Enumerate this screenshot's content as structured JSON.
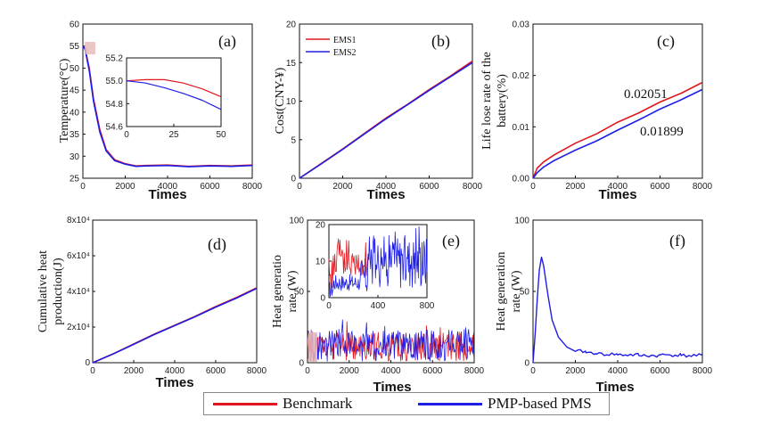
{
  "colors": {
    "benchmark": "#e0171e",
    "pmp": "#1e1ee6",
    "axis": "#111111"
  },
  "legend": {
    "benchmark_label": "Benchmark",
    "pmp_label": "PMP-based PMS"
  },
  "chart_data": [
    {
      "id": "a",
      "panel_label": "(a)",
      "type": "line",
      "xlabel": "Times",
      "ylabel": "Temperature(°C)",
      "xlim": [
        0,
        8000
      ],
      "ylim": [
        25,
        60
      ],
      "xticks": [
        "0",
        "2000",
        "4000",
        "6000",
        "8000"
      ],
      "yticks": [
        "25",
        "30",
        "35",
        "40",
        "45",
        "50",
        "55",
        "60"
      ],
      "series": [
        {
          "name": "Benchmark",
          "x": [
            0,
            100,
            300,
            500,
            800,
            1100,
            1500,
            2000,
            2500,
            3000,
            4000,
            5000,
            6000,
            7000,
            8000
          ],
          "values": [
            55,
            54.5,
            50,
            43,
            36,
            31.5,
            29.2,
            28.3,
            27.8,
            27.9,
            28.0,
            27.7,
            27.9,
            27.8,
            28.0
          ]
        },
        {
          "name": "PMP-based PMS",
          "x": [
            0,
            100,
            300,
            500,
            800,
            1100,
            1500,
            2000,
            2500,
            3000,
            4000,
            5000,
            6000,
            7000,
            8000
          ],
          "values": [
            55,
            54.3,
            49.5,
            42.5,
            35.5,
            31.2,
            29.0,
            28.2,
            27.7,
            27.8,
            27.9,
            27.6,
            27.8,
            27.7,
            27.9
          ]
        }
      ],
      "inset": {
        "xlim": [
          0,
          50
        ],
        "ylim": [
          54.6,
          55.2
        ],
        "xticks": [
          "0",
          "25",
          "50"
        ],
        "yticks": [
          "54.6",
          "54.8",
          "55.0",
          "55.2"
        ],
        "series": [
          {
            "name": "Benchmark",
            "x": [
              0,
              10,
              20,
              30,
              40,
              50
            ],
            "values": [
              55.0,
              55.01,
              55.01,
              54.98,
              54.93,
              54.86
            ]
          },
          {
            "name": "PMP-based PMS",
            "x": [
              0,
              10,
              20,
              30,
              40,
              50
            ],
            "values": [
              55.0,
              54.98,
              54.94,
              54.89,
              54.83,
              54.75
            ]
          }
        ]
      }
    },
    {
      "id": "b",
      "panel_label": "(b)",
      "type": "line",
      "xlabel": "Times",
      "ylabel": "Cost(CNY-¥)",
      "xlim": [
        0,
        8000
      ],
      "ylim": [
        0,
        20
      ],
      "xticks": [
        "0",
        "2000",
        "4000",
        "6000",
        "8000"
      ],
      "yticks": [
        "0",
        "5",
        "10",
        "15",
        "20"
      ],
      "legend_entries": [
        "EMS1",
        "EMS2"
      ],
      "series": [
        {
          "name": "EMS1",
          "x": [
            0,
            1000,
            2000,
            3000,
            4000,
            5000,
            6000,
            7000,
            8000
          ],
          "values": [
            0,
            1.9,
            3.8,
            5.8,
            7.8,
            9.6,
            11.5,
            13.3,
            15.2
          ]
        },
        {
          "name": "EMS2",
          "x": [
            0,
            1000,
            2000,
            3000,
            4000,
            5000,
            6000,
            7000,
            8000
          ],
          "values": [
            0,
            1.85,
            3.75,
            5.75,
            7.7,
            9.55,
            11.4,
            13.2,
            15.0
          ]
        }
      ]
    },
    {
      "id": "c",
      "panel_label": "(c)",
      "type": "line",
      "xlabel": "Times",
      "ylabel": "Life lose rate of the battery(%)",
      "xlim": [
        0,
        8000
      ],
      "ylim": [
        0,
        0.033
      ],
      "xticks": [
        "0",
        "2000",
        "4000",
        "6000",
        "8000"
      ],
      "yticks": [
        "0.00",
        "0.01",
        "0.02",
        "0.03"
      ],
      "annotations": [
        "0.02051",
        "0.01899"
      ],
      "series": [
        {
          "name": "Benchmark",
          "x": [
            0,
            200,
            500,
            1000,
            2000,
            3000,
            4000,
            5000,
            6000,
            7000,
            8000
          ],
          "values": [
            0,
            0.0022,
            0.0035,
            0.005,
            0.0075,
            0.0095,
            0.012,
            0.014,
            0.0163,
            0.0182,
            0.02051
          ]
        },
        {
          "name": "PMP-based PMS",
          "x": [
            0,
            200,
            500,
            1000,
            2000,
            3000,
            4000,
            5000,
            6000,
            7000,
            8000
          ],
          "values": [
            0,
            0.0012,
            0.0024,
            0.0038,
            0.006,
            0.008,
            0.0103,
            0.0125,
            0.0148,
            0.0168,
            0.01899
          ]
        }
      ]
    },
    {
      "id": "d",
      "panel_label": "(d)",
      "type": "line",
      "xlabel": "Times",
      "ylabel": "Cumulative heat production(J)",
      "xlim": [
        0,
        8000
      ],
      "ylim": [
        0,
        80000
      ],
      "xticks": [
        "0",
        "2000",
        "4000",
        "6000",
        "8000"
      ],
      "yticks": [
        "0",
        "2x10⁴",
        "4x10⁴",
        "6x10⁴",
        "8x10⁴"
      ],
      "series": [
        {
          "name": "Benchmark",
          "x": [
            0,
            1000,
            2000,
            3000,
            4000,
            5000,
            6000,
            7000,
            8000
          ],
          "values": [
            0,
            5000,
            10500,
            16000,
            21000,
            26000,
            31500,
            36500,
            42000
          ]
        },
        {
          "name": "PMP-based PMS",
          "x": [
            0,
            1000,
            2000,
            3000,
            4000,
            5000,
            6000,
            7000,
            8000
          ],
          "values": [
            0,
            4900,
            10300,
            15800,
            20800,
            25800,
            31200,
            36200,
            41700
          ]
        }
      ]
    },
    {
      "id": "e",
      "panel_label": "(e)",
      "type": "line",
      "xlabel": "Times",
      "ylabel": "Heat generatio rate (W)",
      "xlim": [
        0,
        8000
      ],
      "ylim": [
        0,
        100
      ],
      "xticks": [
        "0",
        "2000",
        "4000",
        "6000",
        "8000"
      ],
      "yticks": [
        "0",
        "50",
        "100"
      ],
      "series": [
        {
          "name": "Benchmark",
          "pattern": "noisy",
          "base": 11,
          "amplitude": 10
        },
        {
          "name": "PMP-based PMS",
          "pattern": "noisy",
          "base": 12,
          "amplitude": 11
        }
      ],
      "inset": {
        "xlim": [
          0,
          800
        ],
        "ylim": [
          0,
          22
        ],
        "xticks": [
          "0",
          "400",
          "800"
        ],
        "yticks": [
          "0",
          "10",
          "20"
        ]
      }
    },
    {
      "id": "f",
      "panel_label": "(f)",
      "type": "line",
      "xlabel": "Times",
      "ylabel": "Heat generation rate (W)",
      "xlim": [
        0,
        8000
      ],
      "ylim": [
        0,
        100
      ],
      "xticks": [
        "0",
        "2000",
        "4000",
        "6000",
        "8000"
      ],
      "yticks": [
        "0",
        "50",
        "100"
      ],
      "series": [
        {
          "name": "PMP-based PMS",
          "x": [
            0,
            100,
            200,
            300,
            400,
            500,
            700,
            900,
            1200,
            1600,
            2000,
            2500,
            3000,
            4000,
            5000,
            6000,
            7000,
            8000
          ],
          "values": [
            0,
            20,
            45,
            65,
            74,
            68,
            48,
            30,
            18,
            11,
            8,
            7,
            6,
            5.5,
            5,
            5.5,
            5,
            6
          ]
        }
      ]
    }
  ]
}
